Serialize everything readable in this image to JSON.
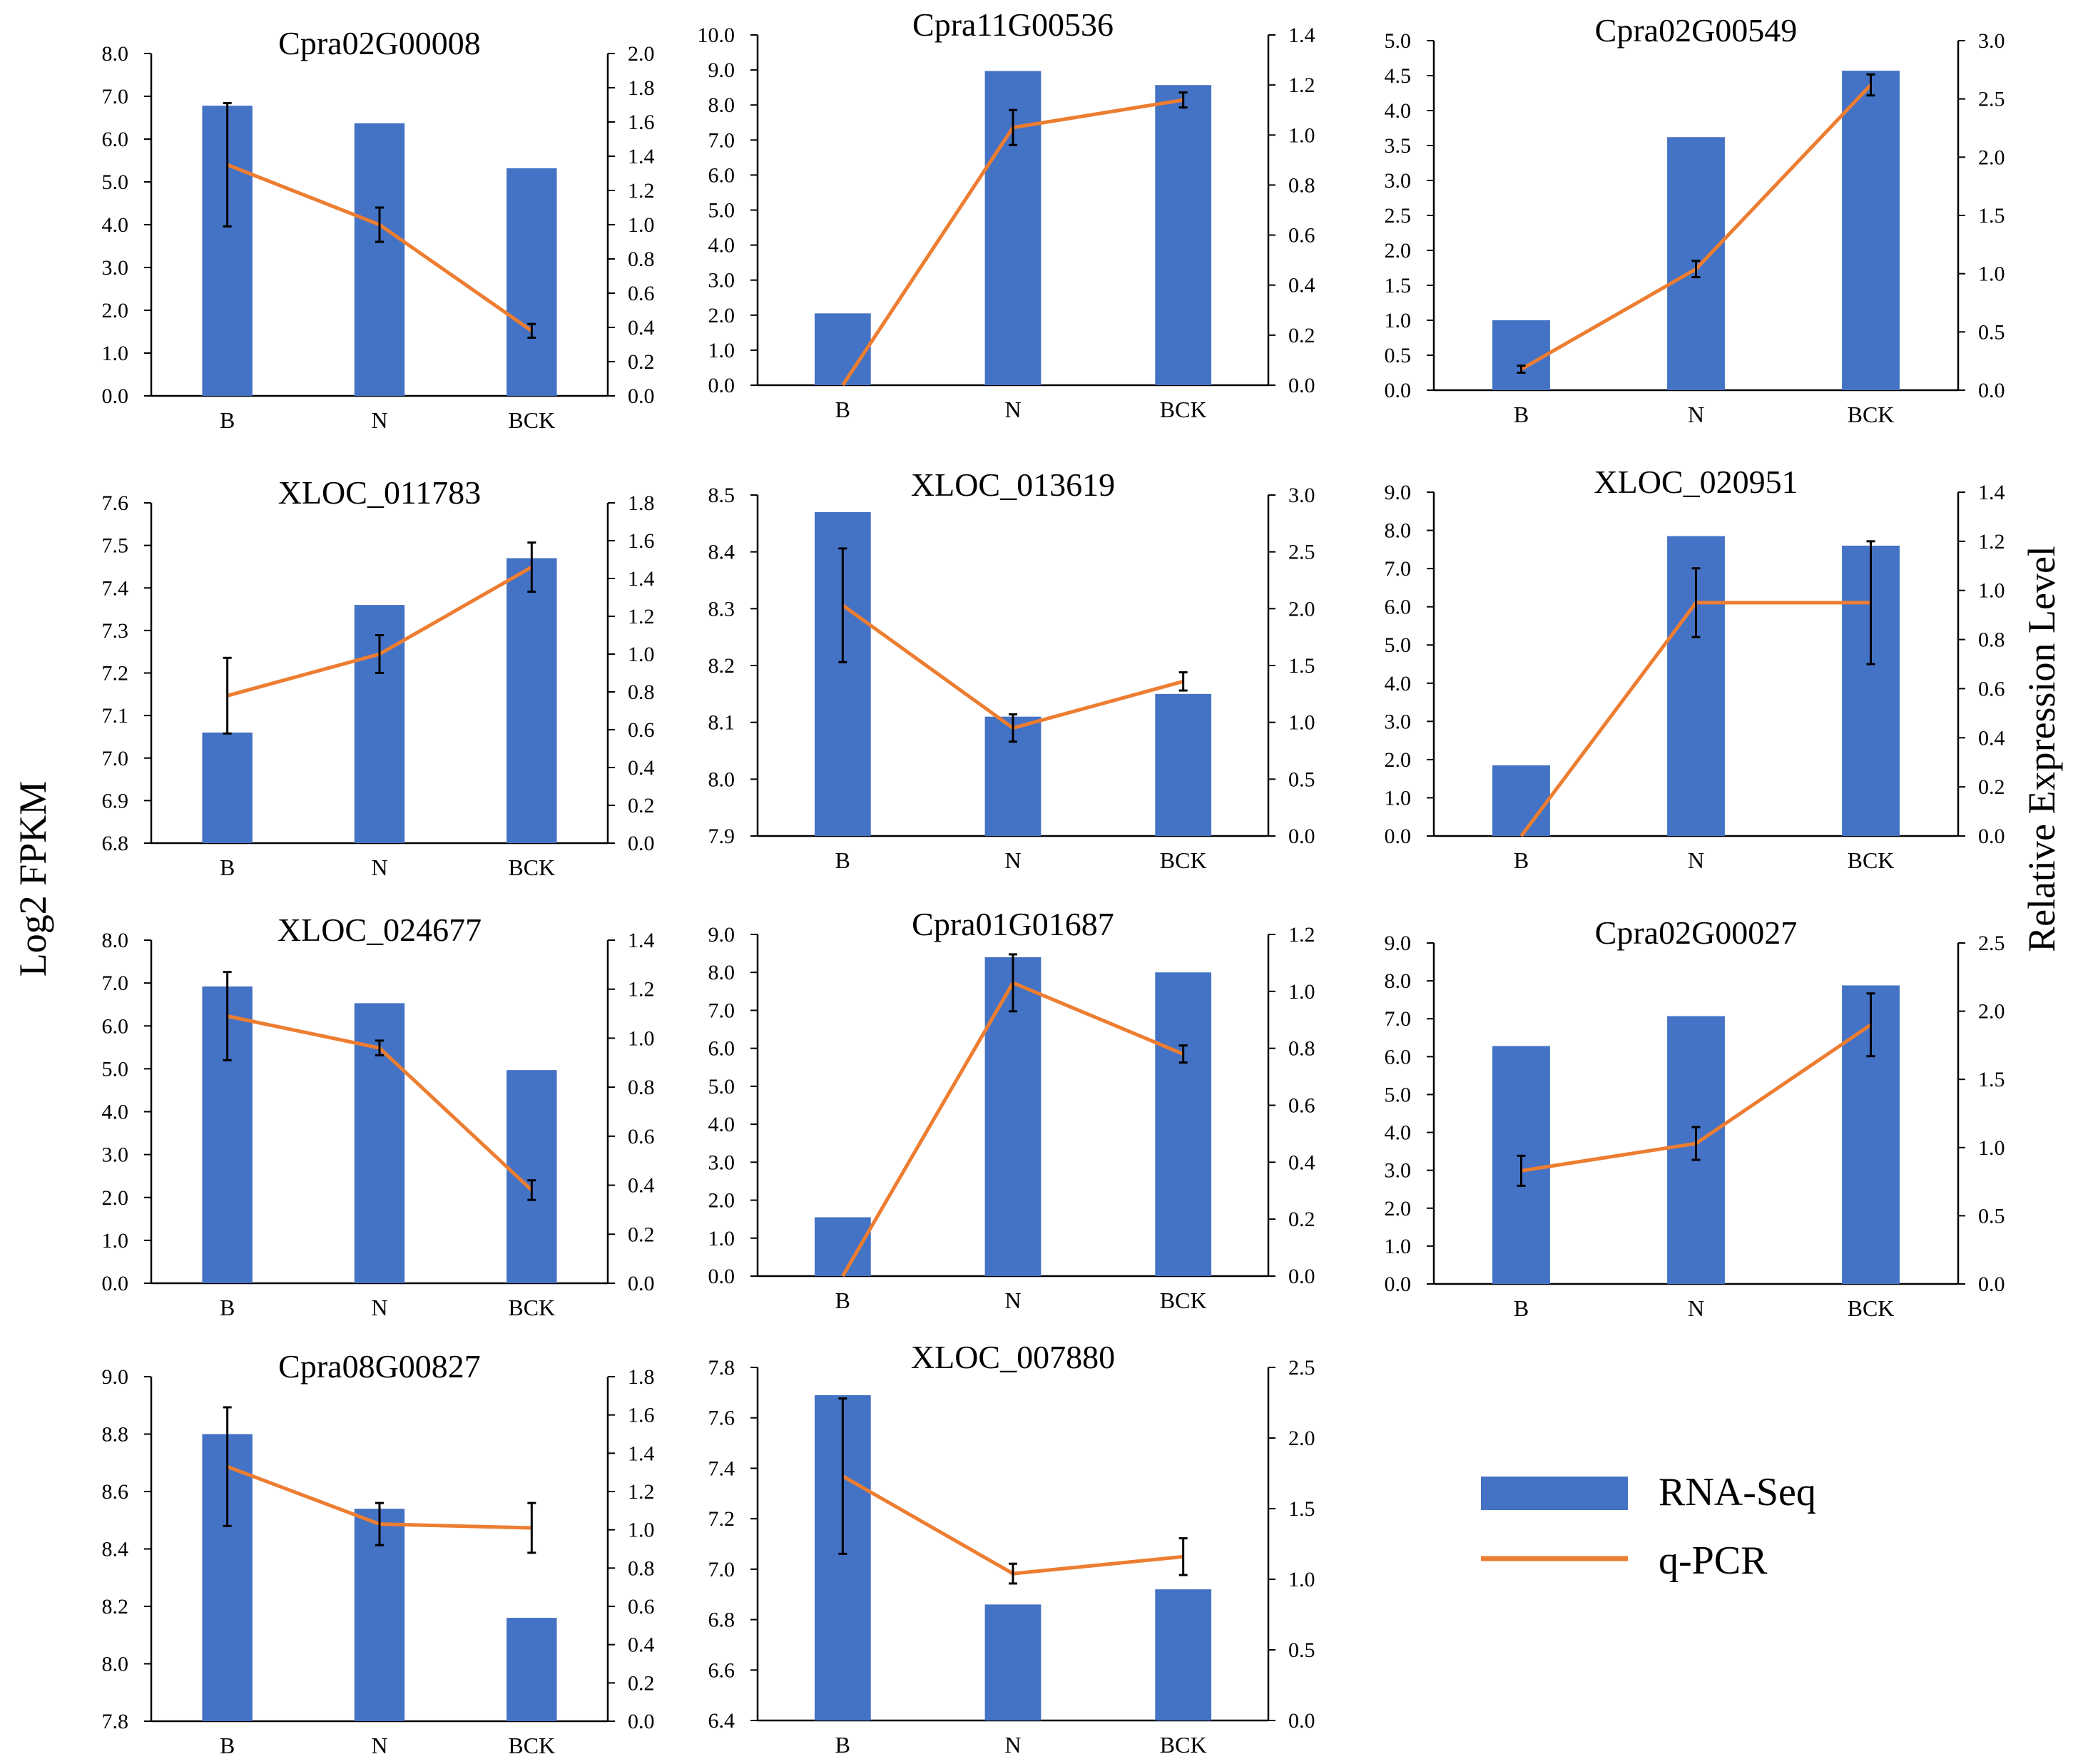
{
  "figure": {
    "y_label_left": "Log2 FPKM",
    "y_label_right": "Relative Expression Level",
    "legend": [
      {
        "name": "RNA-Seq",
        "kind": "bar",
        "color": "#4472C4"
      },
      {
        "name": "q-PCR",
        "kind": "line",
        "color": "#ED7D31"
      }
    ],
    "error_bar_color": "#000000"
  },
  "chart_data": [
    {
      "type": "bar",
      "title": "Cpra02G00008",
      "categories": [
        "B",
        "N",
        "BCK"
      ],
      "series": [
        {
          "name": "RNA-Seq",
          "values": [
            6.78,
            6.37,
            5.32
          ],
          "axis": "left"
        },
        {
          "name": "q-PCR",
          "values": [
            1.35,
            1.0,
            0.38
          ],
          "errors": [
            0.36,
            0.1,
            0.04
          ],
          "axis": "right"
        }
      ],
      "ylim_left": [
        0,
        8
      ],
      "ticks_left": [
        "0.0",
        "1.0",
        "2.0",
        "3.0",
        "4.0",
        "5.0",
        "6.0",
        "7.0",
        "8.0"
      ],
      "ylim_right": [
        0,
        2
      ],
      "ticks_right": [
        "0.0",
        "0.2",
        "0.4",
        "0.6",
        "0.8",
        "1.0",
        "1.2",
        "1.4",
        "1.6",
        "1.8",
        "2.0"
      ]
    },
    {
      "type": "bar",
      "title": "Cpra11G00536",
      "categories": [
        "B",
        "N",
        "BCK"
      ],
      "series": [
        {
          "name": "RNA-Seq",
          "values": [
            2.05,
            8.97,
            8.57
          ],
          "axis": "left"
        },
        {
          "name": "q-PCR",
          "values": [
            0.0,
            1.03,
            1.14
          ],
          "errors": [
            0.0,
            0.07,
            0.03
          ],
          "axis": "right"
        }
      ],
      "ylim_left": [
        0,
        10
      ],
      "ticks_left": [
        "0.0",
        "1.0",
        "2.0",
        "3.0",
        "4.0",
        "5.0",
        "6.0",
        "7.0",
        "8.0",
        "9.0",
        "10.0"
      ],
      "ylim_right": [
        0,
        1.4
      ],
      "ticks_right": [
        "0.0",
        "0.2",
        "0.4",
        "0.6",
        "0.8",
        "1.0",
        "1.2",
        "1.4"
      ]
    },
    {
      "type": "bar",
      "title": "Cpra02G00549",
      "categories": [
        "B",
        "N",
        "BCK"
      ],
      "series": [
        {
          "name": "RNA-Seq",
          "values": [
            1.0,
            3.62,
            4.57
          ],
          "axis": "left"
        },
        {
          "name": "q-PCR",
          "values": [
            0.18,
            1.04,
            2.62
          ],
          "errors": [
            0.03,
            0.07,
            0.09
          ],
          "axis": "right"
        }
      ],
      "ylim_left": [
        0,
        5
      ],
      "ticks_left": [
        "0.0",
        "0.5",
        "1.0",
        "1.5",
        "2.0",
        "2.5",
        "3.0",
        "3.5",
        "4.0",
        "4.5",
        "5.0"
      ],
      "ylim_right": [
        0,
        3
      ],
      "ticks_right": [
        "0.0",
        "0.5",
        "1.0",
        "1.5",
        "2.0",
        "2.5",
        "3.0"
      ]
    },
    {
      "type": "bar",
      "title": "XLOC_011783",
      "categories": [
        "B",
        "N",
        "BCK"
      ],
      "series": [
        {
          "name": "RNA-Seq",
          "values": [
            7.06,
            7.36,
            7.47
          ],
          "axis": "left"
        },
        {
          "name": "q-PCR",
          "values": [
            0.78,
            1.0,
            1.46
          ],
          "errors": [
            0.2,
            0.1,
            0.13
          ],
          "axis": "right"
        }
      ],
      "ylim_left": [
        6.8,
        7.6
      ],
      "ticks_left": [
        "6.8",
        "6.9",
        "7.0",
        "7.1",
        "7.2",
        "7.3",
        "7.4",
        "7.5",
        "7.6"
      ],
      "ylim_right": [
        0,
        1.8
      ],
      "ticks_right": [
        "0.0",
        "0.2",
        "0.4",
        "0.6",
        "0.8",
        "1.0",
        "1.2",
        "1.4",
        "1.6",
        "1.8"
      ]
    },
    {
      "type": "bar",
      "title": "XLOC_013619",
      "categories": [
        "B",
        "N",
        "BCK"
      ],
      "series": [
        {
          "name": "RNA-Seq",
          "values": [
            8.47,
            8.11,
            8.15
          ],
          "axis": "left"
        },
        {
          "name": "q-PCR",
          "values": [
            2.03,
            0.95,
            1.36
          ],
          "errors": [
            0.5,
            0.12,
            0.08
          ],
          "axis": "right"
        }
      ],
      "ylim_left": [
        7.9,
        8.5
      ],
      "ticks_left": [
        "7.9",
        "8.0",
        "8.1",
        "8.2",
        "8.3",
        "8.4",
        "8.5"
      ],
      "ylim_right": [
        0,
        3
      ],
      "ticks_right": [
        "0.0",
        "0.5",
        "1.0",
        "1.5",
        "2.0",
        "2.5",
        "3.0"
      ]
    },
    {
      "type": "bar",
      "title": "XLOC_020951",
      "categories": [
        "B",
        "N",
        "BCK"
      ],
      "series": [
        {
          "name": "RNA-Seq",
          "values": [
            1.85,
            7.85,
            7.6
          ],
          "axis": "left"
        },
        {
          "name": "q-PCR",
          "values": [
            0.0,
            0.95,
            0.95
          ],
          "errors": [
            0.0,
            0.14,
            0.25
          ],
          "axis": "right"
        }
      ],
      "ylim_left": [
        0,
        9
      ],
      "ticks_left": [
        "0.0",
        "1.0",
        "2.0",
        "3.0",
        "4.0",
        "5.0",
        "6.0",
        "7.0",
        "8.0",
        "9.0"
      ],
      "ylim_right": [
        0,
        1.4
      ],
      "ticks_right": [
        "0.0",
        "0.2",
        "0.4",
        "0.6",
        "0.8",
        "1.0",
        "1.2",
        "1.4"
      ]
    },
    {
      "type": "bar",
      "title": "XLOC_024677",
      "categories": [
        "B",
        "N",
        "BCK"
      ],
      "series": [
        {
          "name": "RNA-Seq",
          "values": [
            6.92,
            6.53,
            4.97
          ],
          "axis": "left"
        },
        {
          "name": "q-PCR",
          "values": [
            1.09,
            0.96,
            0.38
          ],
          "errors": [
            0.18,
            0.03,
            0.04
          ],
          "axis": "right"
        }
      ],
      "ylim_left": [
        0,
        8
      ],
      "ticks_left": [
        "0.0",
        "1.0",
        "2.0",
        "3.0",
        "4.0",
        "5.0",
        "6.0",
        "7.0",
        "8.0"
      ],
      "ylim_right": [
        0,
        1.4
      ],
      "ticks_right": [
        "0.0",
        "0.2",
        "0.4",
        "0.6",
        "0.8",
        "1.0",
        "1.2",
        "1.4"
      ]
    },
    {
      "type": "bar",
      "title": "Cpra01G01687",
      "categories": [
        "B",
        "N",
        "BCK"
      ],
      "series": [
        {
          "name": "RNA-Seq",
          "values": [
            1.55,
            8.4,
            8.0
          ],
          "axis": "left"
        },
        {
          "name": "q-PCR",
          "values": [
            0.0,
            1.03,
            0.78
          ],
          "errors": [
            0.0,
            0.1,
            0.03
          ],
          "axis": "right"
        }
      ],
      "ylim_left": [
        0,
        9
      ],
      "ticks_left": [
        "0.0",
        "1.0",
        "2.0",
        "3.0",
        "4.0",
        "5.0",
        "6.0",
        "7.0",
        "8.0",
        "9.0"
      ],
      "ylim_right": [
        0,
        1.2
      ],
      "ticks_right": [
        "0.0",
        "0.2",
        "0.4",
        "0.6",
        "0.8",
        "1.0",
        "1.2"
      ]
    },
    {
      "type": "bar",
      "title": "Cpra02G00027",
      "categories": [
        "B",
        "N",
        "BCK"
      ],
      "series": [
        {
          "name": "RNA-Seq",
          "values": [
            6.28,
            7.07,
            7.88
          ],
          "axis": "left"
        },
        {
          "name": "q-PCR",
          "values": [
            0.83,
            1.03,
            1.9
          ],
          "errors": [
            0.11,
            0.12,
            0.23
          ],
          "axis": "right"
        }
      ],
      "ylim_left": [
        0,
        9
      ],
      "ticks_left": [
        "0.0",
        "1.0",
        "2.0",
        "3.0",
        "4.0",
        "5.0",
        "6.0",
        "7.0",
        "8.0",
        "9.0"
      ],
      "ylim_right": [
        0,
        2.5
      ],
      "ticks_right": [
        "0.0",
        "0.5",
        "1.0",
        "1.5",
        "2.0",
        "2.5"
      ]
    },
    {
      "type": "bar",
      "title": "Cpra08G00827",
      "categories": [
        "B",
        "N",
        "BCK"
      ],
      "series": [
        {
          "name": "RNA-Seq",
          "values": [
            8.8,
            8.54,
            8.16
          ],
          "axis": "left"
        },
        {
          "name": "q-PCR",
          "values": [
            1.33,
            1.03,
            1.01
          ],
          "errors": [
            0.31,
            0.11,
            0.13
          ],
          "axis": "right"
        }
      ],
      "ylim_left": [
        7.8,
        9.0
      ],
      "ticks_left": [
        "7.8",
        "8.0",
        "8.2",
        "8.4",
        "8.6",
        "8.8",
        "9.0"
      ],
      "ylim_right": [
        0,
        1.8
      ],
      "ticks_right": [
        "0.0",
        "0.2",
        "0.4",
        "0.6",
        "0.8",
        "1.0",
        "1.2",
        "1.4",
        "1.6",
        "1.8"
      ]
    },
    {
      "type": "bar",
      "title": "XLOC_007880",
      "categories": [
        "B",
        "N",
        "BCK"
      ],
      "series": [
        {
          "name": "RNA-Seq",
          "values": [
            7.69,
            6.86,
            6.92
          ],
          "axis": "left"
        },
        {
          "name": "q-PCR",
          "values": [
            1.73,
            1.04,
            1.16
          ],
          "errors": [
            0.55,
            0.07,
            0.13
          ],
          "axis": "right"
        }
      ],
      "ylim_left": [
        6.4,
        7.8
      ],
      "ticks_left": [
        "6.4",
        "6.6",
        "6.8",
        "7.0",
        "7.2",
        "7.4",
        "7.6",
        "7.8"
      ],
      "ylim_right": [
        0,
        2.5
      ],
      "ticks_right": [
        "0.0",
        "0.5",
        "1.0",
        "1.5",
        "2.0",
        "2.5"
      ]
    }
  ]
}
